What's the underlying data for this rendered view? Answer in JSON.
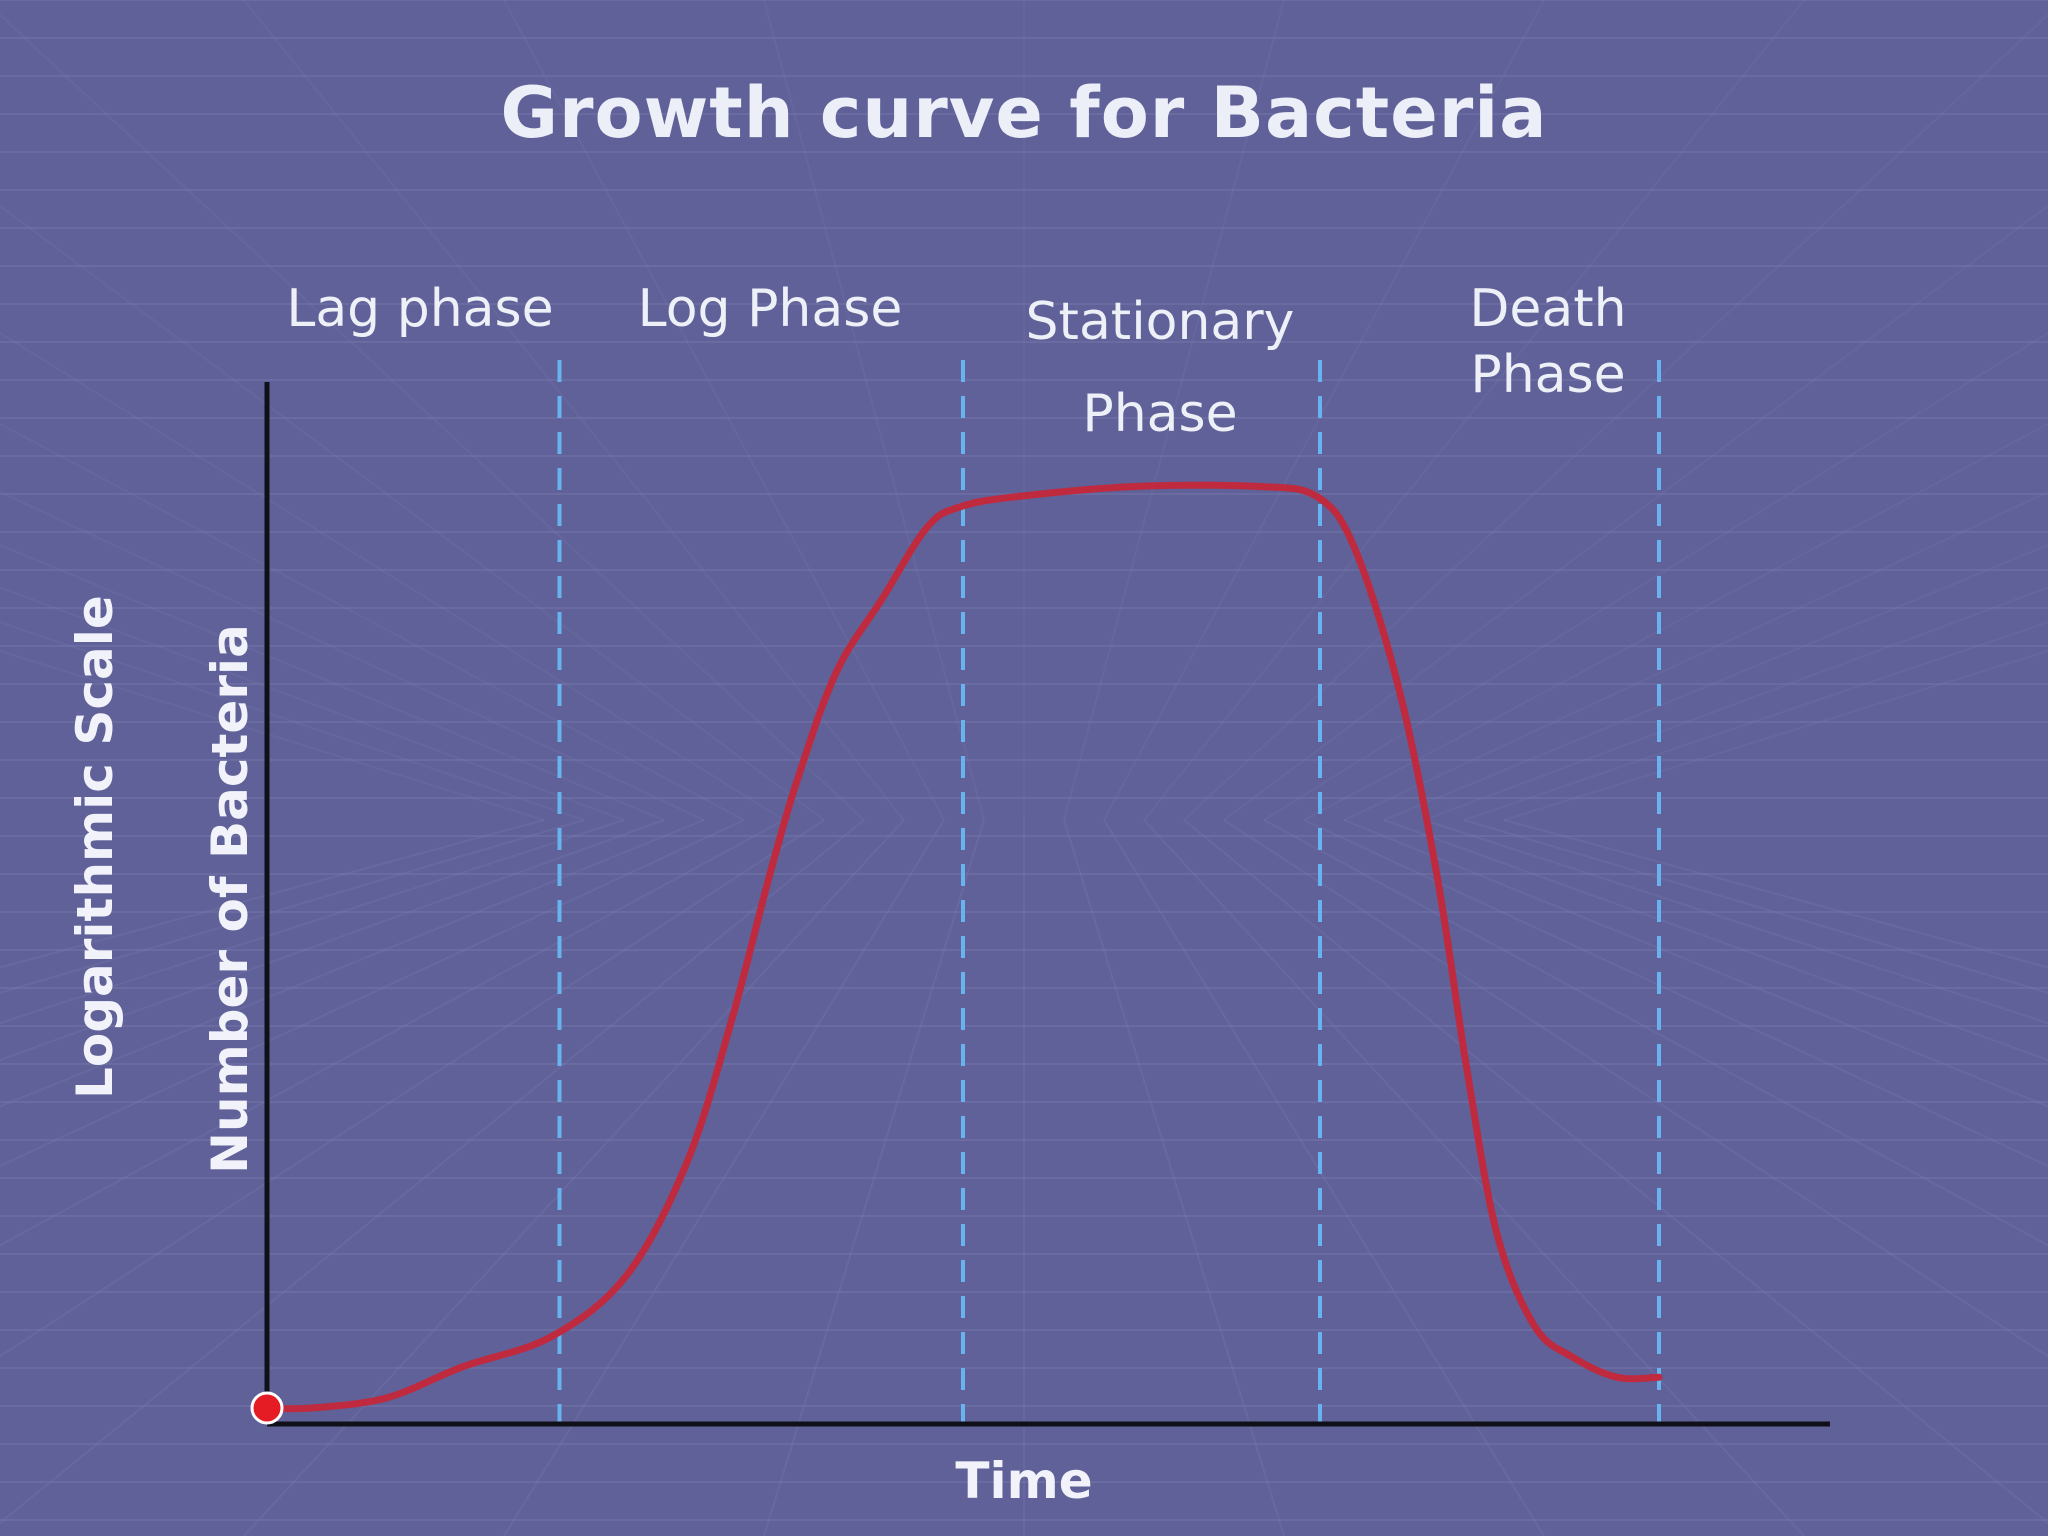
{
  "chart_data": {
    "type": "line",
    "title": "Growth curve for Bacteria",
    "xlabel": "Time",
    "ylabel": [
      "Logarithmic Scale",
      "Number of Bacteria"
    ],
    "x_ticks": [],
    "y_ticks": [],
    "phases": [
      {
        "label_lines": [
          "Lag phase"
        ]
      },
      {
        "label_lines": [
          "Log Phase"
        ]
      },
      {
        "label_lines": [
          "Stationary",
          "Phase"
        ]
      },
      {
        "label_lines": [
          "Death",
          "Phase"
        ]
      }
    ],
    "phase_boundaries": [
      0,
      0.195,
      0.464,
      0.702,
      0.928
    ],
    "xlim": [
      0,
      1
    ],
    "ylim": [
      0,
      1
    ],
    "series": [
      {
        "color": "#c02a3e",
        "x": [
          0,
          0.03,
          0.08,
          0.13,
          0.19,
          0.24,
          0.28,
          0.31,
          0.335,
          0.355,
          0.38,
          0.41,
          0.44,
          0.462,
          0.5,
          0.58,
          0.66,
          0.7,
          0.725,
          0.755,
          0.78,
          0.8,
          0.82,
          0.845,
          0.87,
          0.9,
          0.928
        ],
        "y": [
          0,
          0,
          0.01,
          0.04,
          0.07,
          0.13,
          0.24,
          0.38,
          0.52,
          0.62,
          0.72,
          0.79,
          0.86,
          0.88,
          0.89,
          0.9,
          0.9,
          0.89,
          0.84,
          0.7,
          0.52,
          0.33,
          0.17,
          0.08,
          0.05,
          0.03,
          0.03
        ]
      }
    ],
    "grid": false,
    "legend": "none"
  },
  "colors": {
    "background": "#5f6198",
    "curve": "#c02a3e",
    "divider": "#69b2f0",
    "axis": "#101018",
    "origin_marker": "#e51c23"
  }
}
